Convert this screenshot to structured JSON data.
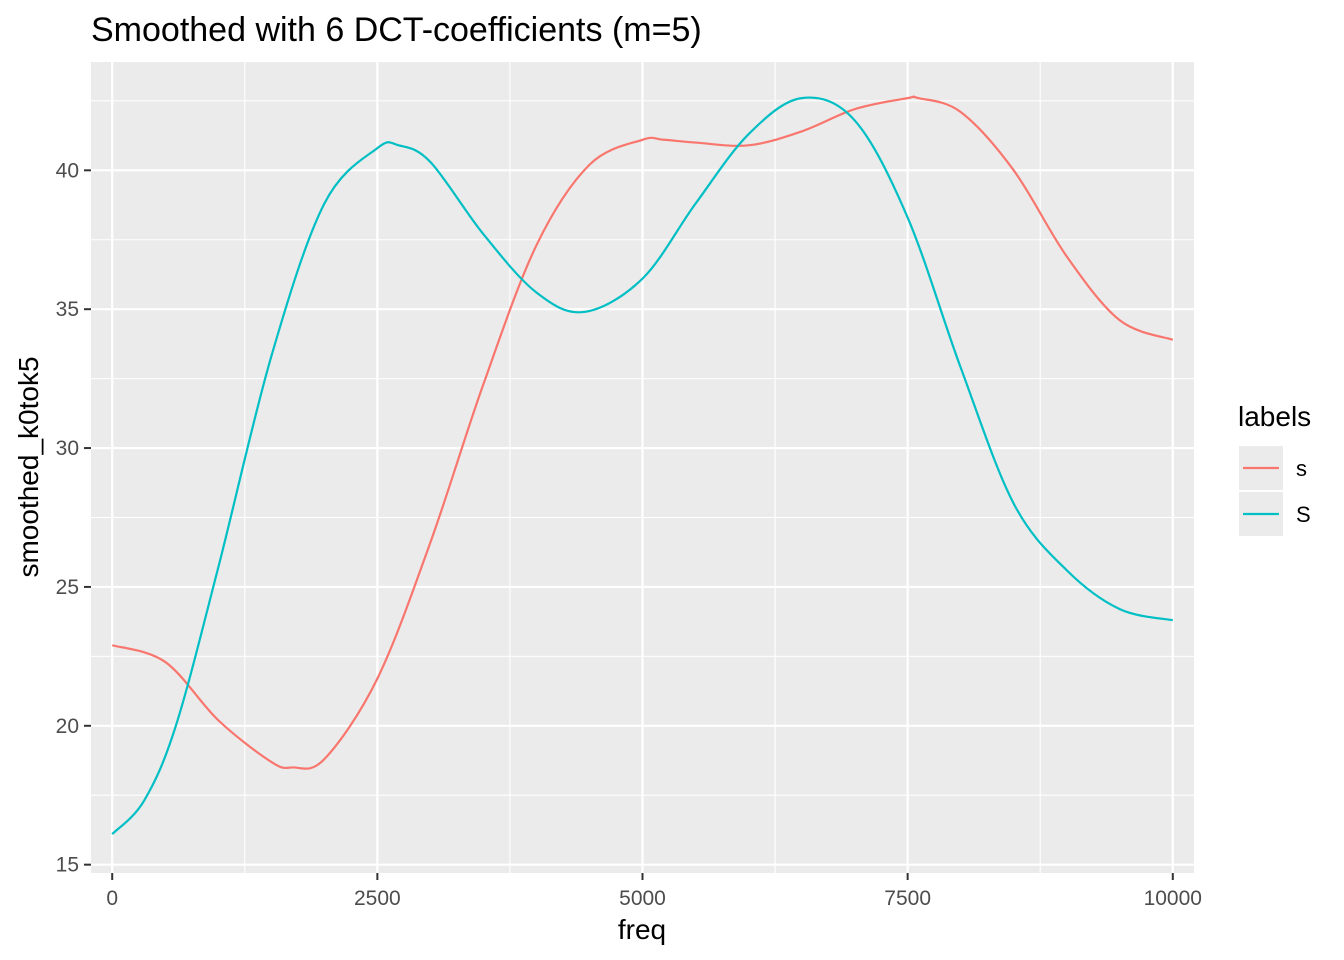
{
  "chart_data": {
    "type": "line",
    "title": "Smoothed with 6 DCT-coefficients (m=5)",
    "xlabel": "freq",
    "ylabel": "smoothed_k0tok5",
    "xlim": [
      -200,
      10200
    ],
    "ylim": [
      14.7,
      43.9
    ],
    "x_ticks": [
      0,
      2500,
      5000,
      7500,
      10000
    ],
    "x_tick_labels": [
      "0",
      "2500",
      "5000",
      "7500",
      "10000"
    ],
    "y_ticks": [
      15,
      20,
      25,
      30,
      35,
      40
    ],
    "y_tick_labels": [
      "15",
      "20",
      "25",
      "30",
      "35",
      "40"
    ],
    "grid": true,
    "legend": {
      "title": "labels",
      "position": "right"
    },
    "series": [
      {
        "name": "s",
        "color": "#F8766D",
        "x": [
          0,
          500,
          1000,
          1500,
          1700,
          2000,
          2500,
          3000,
          3500,
          4000,
          4500,
          5000,
          5200,
          5500,
          6000,
          6500,
          7000,
          7500,
          7600,
          8000,
          8500,
          9000,
          9500,
          10000
        ],
        "y": [
          22.9,
          22.3,
          20.2,
          18.7,
          18.5,
          18.8,
          21.7,
          26.6,
          32.3,
          37.3,
          40.2,
          41.1,
          41.1,
          41.0,
          40.9,
          41.4,
          42.2,
          42.6,
          42.6,
          42.1,
          40.0,
          36.9,
          34.6,
          33.9
        ]
      },
      {
        "name": "S",
        "color": "#00BFC4",
        "x": [
          0,
          300,
          600,
          1000,
          1500,
          2000,
          2500,
          2700,
          3000,
          3500,
          4000,
          4450,
          5000,
          5500,
          6000,
          6500,
          7000,
          7500,
          8000,
          8500,
          9000,
          9500,
          10000
        ],
        "y": [
          16.1,
          17.3,
          20.0,
          25.7,
          33.3,
          38.8,
          40.8,
          40.9,
          40.3,
          37.7,
          35.6,
          34.9,
          36.1,
          38.8,
          41.3,
          42.6,
          41.8,
          38.3,
          32.9,
          28.0,
          25.6,
          24.2,
          23.8
        ]
      }
    ]
  }
}
